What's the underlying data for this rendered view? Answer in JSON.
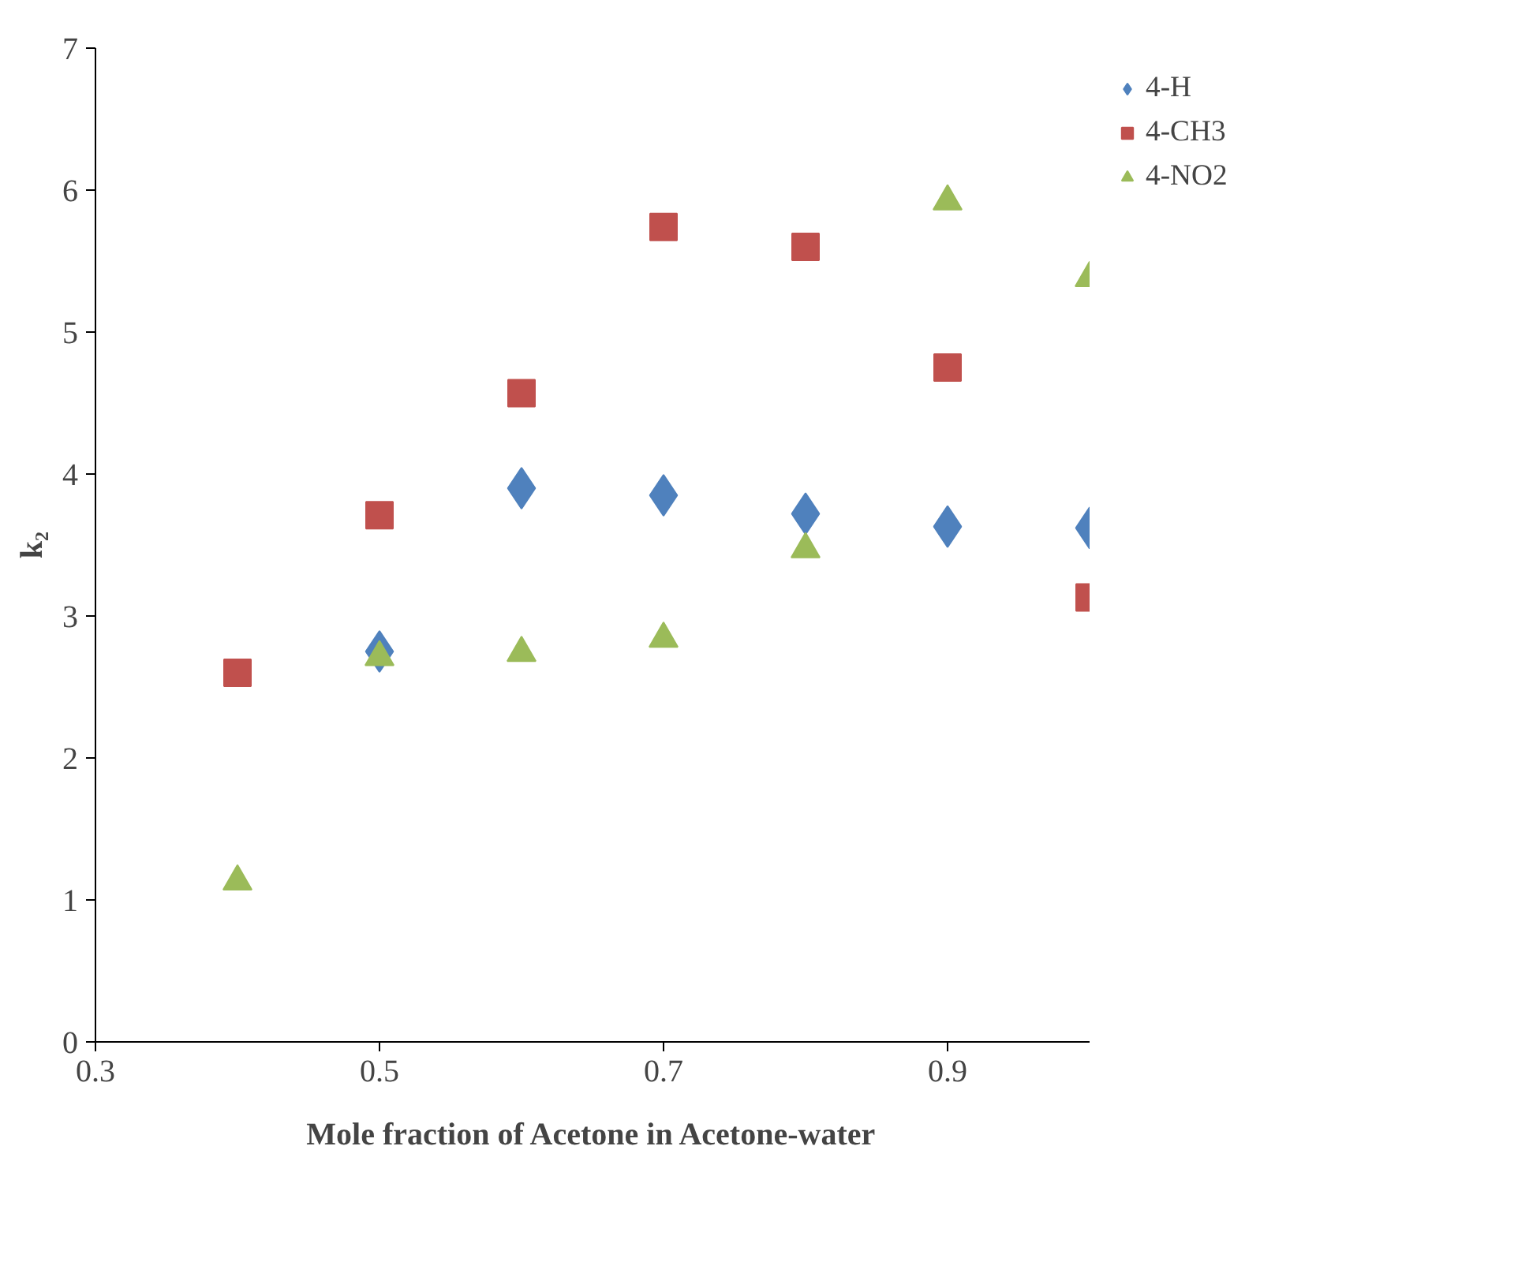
{
  "chart_data": {
    "type": "scatter",
    "xlabel": "Mole fraction of Acetone in Acetone-water",
    "ylabel": "k₂",
    "x": [
      0.4,
      0.5,
      0.6,
      0.7,
      0.8,
      0.9,
      1.0
    ],
    "series": [
      {
        "name": "4-H",
        "color": "#4f81bd",
        "marker": "diamond",
        "values": [
          null,
          2.75,
          3.9,
          3.85,
          3.72,
          3.63,
          3.62
        ]
      },
      {
        "name": "4-CH3",
        "color": "#c0504d",
        "marker": "square",
        "values": [
          2.6,
          3.71,
          4.57,
          5.74,
          5.6,
          4.75,
          3.13
        ]
      },
      {
        "name": "4-NO2",
        "color": "#9bbb59",
        "marker": "triangle",
        "values": [
          1.13,
          2.71,
          2.74,
          2.84,
          3.47,
          5.92,
          5.38
        ]
      }
    ],
    "xlim": [
      0.3,
      1.0
    ],
    "xticks": [
      0.3,
      0.5,
      0.7,
      0.9
    ],
    "ylim": [
      0,
      7
    ],
    "yticks": [
      0,
      1,
      2,
      3,
      4,
      5,
      6,
      7
    ],
    "grid": false,
    "legend": "top right"
  }
}
